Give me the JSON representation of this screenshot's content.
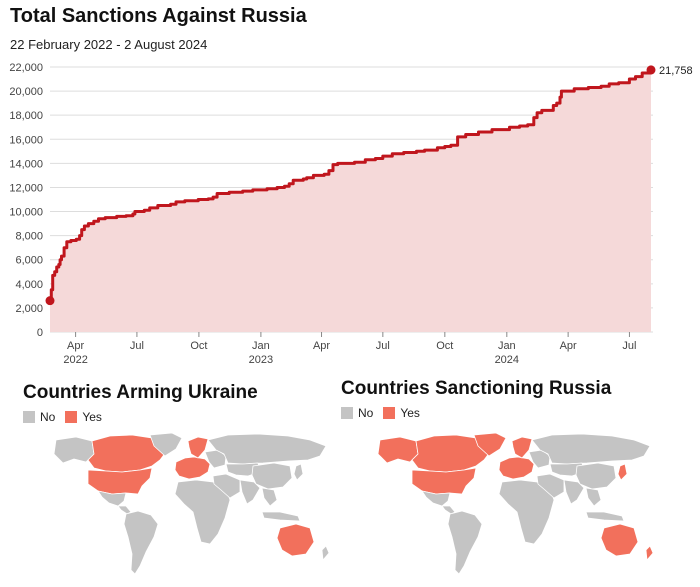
{
  "title": "Total Sanctions Against Russia",
  "subtitle": "22 February 2022 - 2 August 2024",
  "colors": {
    "line": "#c0161d",
    "area": "#f5d9d9",
    "grid": "#dddddd",
    "map_no": "#c4c4c4",
    "map_yes": "#f2705c"
  },
  "chart_data": [
    {
      "type": "area",
      "title": "Total Sanctions Against Russia",
      "subtitle": "22 February 2022 - 2 August 2024",
      "xlabel": "",
      "ylabel": "",
      "xlim": [
        "2022-02-22",
        "2024-08-02"
      ],
      "ylim": [
        0,
        22000
      ],
      "yticks": [
        0,
        2000,
        4000,
        6000,
        8000,
        10000,
        12000,
        14000,
        16000,
        18000,
        20000,
        22000
      ],
      "ytick_labels": [
        "0",
        "2,000",
        "4,000",
        "6,000",
        "8,000",
        "10,000",
        "12,000",
        "14,000",
        "16,000",
        "18,000",
        "20,000",
        "22,000"
      ],
      "xticks": [
        {
          "date": "2022-04-01",
          "label": "Apr",
          "year": "2022"
        },
        {
          "date": "2022-07-01",
          "label": "Jul",
          "year": ""
        },
        {
          "date": "2022-10-01",
          "label": "Oct",
          "year": ""
        },
        {
          "date": "2023-01-01",
          "label": "Jan",
          "year": "2023"
        },
        {
          "date": "2023-04-01",
          "label": "Apr",
          "year": ""
        },
        {
          "date": "2023-07-01",
          "label": "Jul",
          "year": ""
        },
        {
          "date": "2023-10-01",
          "label": "Oct",
          "year": ""
        },
        {
          "date": "2024-01-01",
          "label": "Jan",
          "year": "2024"
        },
        {
          "date": "2024-04-01",
          "label": "Apr",
          "year": ""
        },
        {
          "date": "2024-07-01",
          "label": "Jul",
          "year": ""
        }
      ],
      "grid": true,
      "end_label": "21,758",
      "series": [
        {
          "points": [
            [
              "2022-02-22",
              2600
            ],
            [
              "2022-02-24",
              3500
            ],
            [
              "2022-02-26",
              4700
            ],
            [
              "2022-03-01",
              5000
            ],
            [
              "2022-03-04",
              5400
            ],
            [
              "2022-03-07",
              5600
            ],
            [
              "2022-03-09",
              6000
            ],
            [
              "2022-03-11",
              6300
            ],
            [
              "2022-03-15",
              7000
            ],
            [
              "2022-03-19",
              7500
            ],
            [
              "2022-03-25",
              7600
            ],
            [
              "2022-04-02",
              7700
            ],
            [
              "2022-04-07",
              8000
            ],
            [
              "2022-04-10",
              8500
            ],
            [
              "2022-04-14",
              8800
            ],
            [
              "2022-04-20",
              9000
            ],
            [
              "2022-04-28",
              9200
            ],
            [
              "2022-05-05",
              9400
            ],
            [
              "2022-05-15",
              9500
            ],
            [
              "2022-06-01",
              9600
            ],
            [
              "2022-06-15",
              9650
            ],
            [
              "2022-06-25",
              9800
            ],
            [
              "2022-06-28",
              10000
            ],
            [
              "2022-07-12",
              10100
            ],
            [
              "2022-07-20",
              10300
            ],
            [
              "2022-08-01",
              10500
            ],
            [
              "2022-08-20",
              10600
            ],
            [
              "2022-08-28",
              10800
            ],
            [
              "2022-09-10",
              10900
            ],
            [
              "2022-09-30",
              11000
            ],
            [
              "2022-10-15",
              11050
            ],
            [
              "2022-10-22",
              11200
            ],
            [
              "2022-10-28",
              11500
            ],
            [
              "2022-11-15",
              11600
            ],
            [
              "2022-12-05",
              11700
            ],
            [
              "2022-12-20",
              11800
            ],
            [
              "2023-01-10",
              11900
            ],
            [
              "2023-01-25",
              12000
            ],
            [
              "2023-02-05",
              12100
            ],
            [
              "2023-02-12",
              12300
            ],
            [
              "2023-02-18",
              12600
            ],
            [
              "2023-03-05",
              12700
            ],
            [
              "2023-03-10",
              12800
            ],
            [
              "2023-03-20",
              13000
            ],
            [
              "2023-04-05",
              13100
            ],
            [
              "2023-04-12",
              13400
            ],
            [
              "2023-04-18",
              13900
            ],
            [
              "2023-04-25",
              14000
            ],
            [
              "2023-05-20",
              14100
            ],
            [
              "2023-06-05",
              14300
            ],
            [
              "2023-06-20",
              14400
            ],
            [
              "2023-07-01",
              14600
            ],
            [
              "2023-07-15",
              14800
            ],
            [
              "2023-08-01",
              14900
            ],
            [
              "2023-08-20",
              15000
            ],
            [
              "2023-09-01",
              15100
            ],
            [
              "2023-09-20",
              15300
            ],
            [
              "2023-10-01",
              15400
            ],
            [
              "2023-10-10",
              15500
            ],
            [
              "2023-10-20",
              16200
            ],
            [
              "2023-11-01",
              16400
            ],
            [
              "2023-11-20",
              16600
            ],
            [
              "2023-12-10",
              16800
            ],
            [
              "2024-01-05",
              17000
            ],
            [
              "2024-01-20",
              17100
            ],
            [
              "2024-02-01",
              17200
            ],
            [
              "2024-02-10",
              17800
            ],
            [
              "2024-02-15",
              18200
            ],
            [
              "2024-02-22",
              18400
            ],
            [
              "2024-03-10",
              18800
            ],
            [
              "2024-03-15",
              19000
            ],
            [
              "2024-03-20",
              19500
            ],
            [
              "2024-03-22",
              20000
            ],
            [
              "2024-04-10",
              20200
            ],
            [
              "2024-05-01",
              20300
            ],
            [
              "2024-05-20",
              20400
            ],
            [
              "2024-06-01",
              20600
            ],
            [
              "2024-06-15",
              20700
            ],
            [
              "2024-07-01",
              21000
            ],
            [
              "2024-07-10",
              21200
            ],
            [
              "2024-07-20",
              21500
            ],
            [
              "2024-08-02",
              21758
            ]
          ]
        }
      ]
    },
    {
      "type": "map",
      "title": "Countries Arming Ukraine",
      "legend": [
        {
          "label": "No",
          "color": "#c4c4c4"
        },
        {
          "label": "Yes",
          "color": "#f2705c"
        }
      ]
    },
    {
      "type": "map",
      "title": "Countries Sanctioning Russia",
      "legend": [
        {
          "label": "No",
          "color": "#c4c4c4"
        },
        {
          "label": "Yes",
          "color": "#f2705c"
        }
      ]
    }
  ],
  "maps": [
    {
      "title": "Countries Arming Ukraine",
      "legend_no": "No",
      "legend_yes": "Yes",
      "regions": [
        {
          "name": "alaska",
          "status": "no"
        },
        {
          "name": "canada",
          "status": "yes"
        },
        {
          "name": "usa",
          "status": "yes"
        },
        {
          "name": "greenland",
          "status": "no"
        },
        {
          "name": "mexico",
          "status": "no"
        },
        {
          "name": "central-america",
          "status": "no"
        },
        {
          "name": "south-america",
          "status": "no"
        },
        {
          "name": "europe-west",
          "status": "yes"
        },
        {
          "name": "scandinavia",
          "status": "yes"
        },
        {
          "name": "europe-east",
          "status": "no"
        },
        {
          "name": "russia",
          "status": "no"
        },
        {
          "name": "africa",
          "status": "no"
        },
        {
          "name": "middle-east",
          "status": "no"
        },
        {
          "name": "central-asia",
          "status": "no"
        },
        {
          "name": "china",
          "status": "no"
        },
        {
          "name": "india",
          "status": "no"
        },
        {
          "name": "southeast-asia",
          "status": "no"
        },
        {
          "name": "japan",
          "status": "no"
        },
        {
          "name": "indonesia",
          "status": "no"
        },
        {
          "name": "australia",
          "status": "yes"
        },
        {
          "name": "new-zealand",
          "status": "no"
        }
      ]
    },
    {
      "title": "Countries Sanctioning Russia",
      "legend_no": "No",
      "legend_yes": "Yes",
      "regions": [
        {
          "name": "alaska",
          "status": "yes"
        },
        {
          "name": "canada",
          "status": "yes"
        },
        {
          "name": "usa",
          "status": "yes"
        },
        {
          "name": "greenland",
          "status": "yes"
        },
        {
          "name": "mexico",
          "status": "no"
        },
        {
          "name": "central-america",
          "status": "no"
        },
        {
          "name": "south-america",
          "status": "no"
        },
        {
          "name": "europe-west",
          "status": "yes"
        },
        {
          "name": "scandinavia",
          "status": "yes"
        },
        {
          "name": "europe-east",
          "status": "no"
        },
        {
          "name": "russia",
          "status": "no"
        },
        {
          "name": "africa",
          "status": "no"
        },
        {
          "name": "middle-east",
          "status": "no"
        },
        {
          "name": "central-asia",
          "status": "no"
        },
        {
          "name": "china",
          "status": "no"
        },
        {
          "name": "india",
          "status": "no"
        },
        {
          "name": "southeast-asia",
          "status": "no"
        },
        {
          "name": "japan",
          "status": "yes"
        },
        {
          "name": "indonesia",
          "status": "no"
        },
        {
          "name": "australia",
          "status": "yes"
        },
        {
          "name": "new-zealand",
          "status": "yes"
        }
      ]
    }
  ]
}
